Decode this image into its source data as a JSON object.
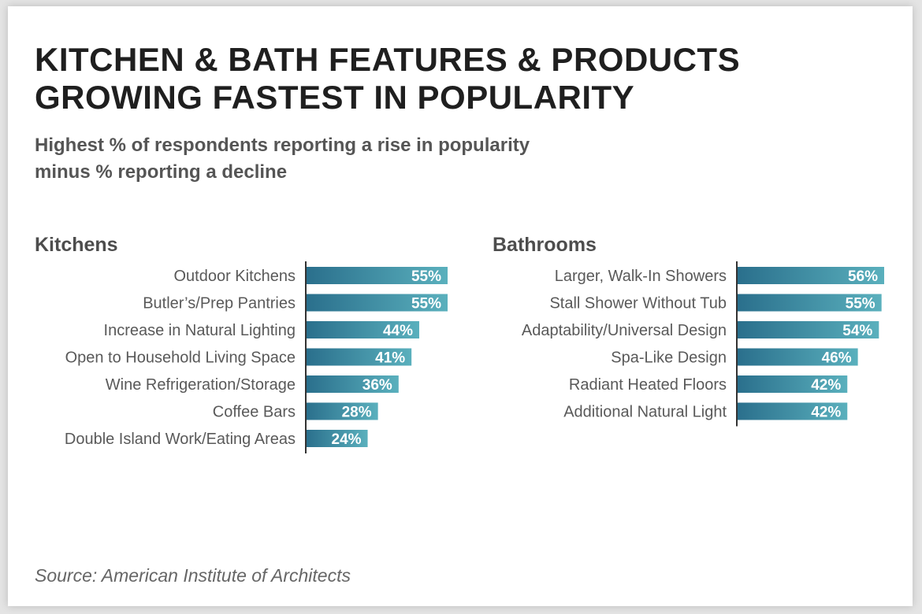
{
  "title": {
    "line1": "KITCHEN & BATH FEATURES & PRODUCTS",
    "line2": "GROWING FASTEST IN POPULARITY"
  },
  "subtitle": {
    "line1": "Highest % of respondents reporting a rise in popularity",
    "line2": "minus % reporting a decline"
  },
  "source": "Source: American Institute of Architects",
  "colors": {
    "bar_left": "#2a6f8c",
    "bar_right": "#5ab0bd",
    "axis": "#333333",
    "label": "#595959"
  },
  "chart_data": [
    {
      "type": "bar",
      "orientation": "horizontal",
      "title": "Kitchens",
      "categories": [
        "Outdoor Kitchens",
        "Butler’s/Prep Pantries",
        "Increase in Natural Lighting",
        "Open to Household Living Space",
        "Wine Refrigeration/Storage",
        "Coffee Bars",
        "Double Island Work/Eating Areas"
      ],
      "values": [
        55,
        55,
        44,
        41,
        36,
        28,
        24
      ],
      "data_labels": [
        "55%",
        "55%",
        "44%",
        "41%",
        "36%",
        "28%",
        "24%"
      ],
      "unit": "%"
    },
    {
      "type": "bar",
      "orientation": "horizontal",
      "title": "Bathrooms",
      "categories": [
        "Larger, Walk-In Showers",
        "Stall Shower Without Tub",
        "Adaptability/Universal Design",
        "Spa-Like Design",
        "Radiant Heated Floors",
        "Additional Natural Light"
      ],
      "values": [
        56,
        55,
        54,
        46,
        42,
        42
      ],
      "data_labels": [
        "56%",
        "55%",
        "54%",
        "46%",
        "42%",
        "42%"
      ],
      "unit": "%"
    }
  ]
}
